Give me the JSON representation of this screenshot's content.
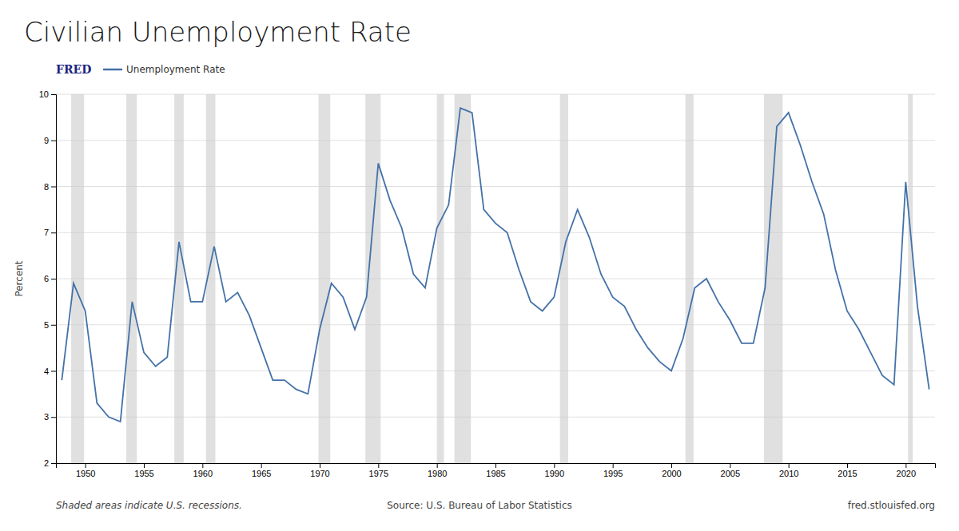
{
  "chart_data": {
    "type": "line",
    "title": "Civilian Unemployment Rate",
    "ylabel": "Percent",
    "annotations": [
      "FRED",
      "Shaded areas indicate U.S. recessions.",
      "Source: U.S. Bureau of Labor Statistics",
      "fred.stlouisfed.org"
    ],
    "x": [
      1948,
      1949,
      1950,
      1951,
      1952,
      1953,
      1954,
      1955,
      1956,
      1957,
      1958,
      1959,
      1960,
      1961,
      1962,
      1963,
      1964,
      1965,
      1966,
      1967,
      1968,
      1969,
      1970,
      1971,
      1972,
      1973,
      1974,
      1975,
      1976,
      1977,
      1978,
      1979,
      1980,
      1981,
      1982,
      1983,
      1984,
      1985,
      1986,
      1987,
      1988,
      1989,
      1990,
      1991,
      1992,
      1993,
      1994,
      1995,
      1996,
      1997,
      1998,
      1999,
      2000,
      2001,
      2002,
      2003,
      2004,
      2005,
      2006,
      2007,
      2008,
      2009,
      2010,
      2011,
      2012,
      2013,
      2014,
      2015,
      2016,
      2017,
      2018,
      2019,
      2020,
      2021,
      2022
    ],
    "series": [
      {
        "name": "Unemployment Rate",
        "color": "#4472a8",
        "values": [
          3.8,
          5.9,
          5.3,
          3.3,
          3.0,
          2.9,
          5.5,
          4.4,
          4.1,
          4.3,
          6.8,
          5.5,
          5.5,
          6.7,
          5.5,
          5.7,
          5.2,
          4.5,
          3.8,
          3.8,
          3.6,
          3.5,
          4.9,
          5.9,
          5.6,
          4.9,
          5.6,
          8.5,
          7.7,
          7.1,
          6.1,
          5.8,
          7.1,
          7.6,
          9.7,
          9.6,
          7.5,
          7.2,
          7.0,
          6.2,
          5.5,
          5.3,
          5.6,
          6.8,
          7.5,
          6.9,
          6.1,
          5.6,
          5.4,
          4.9,
          4.5,
          4.2,
          4.0,
          4.7,
          5.8,
          6.0,
          5.5,
          5.1,
          4.6,
          4.6,
          5.8,
          9.3,
          9.6,
          8.9,
          8.1,
          7.4,
          6.2,
          5.3,
          4.9,
          4.4,
          3.9,
          3.7,
          8.1,
          5.4,
          3.6
        ]
      }
    ],
    "recessions": [
      [
        1948.8,
        1949.9
      ],
      [
        1953.5,
        1954.4
      ],
      [
        1957.6,
        1958.4
      ],
      [
        1960.3,
        1961.1
      ],
      [
        1969.9,
        1970.9
      ],
      [
        1973.9,
        1975.2
      ],
      [
        1980.0,
        1980.6
      ],
      [
        1981.5,
        1982.9
      ],
      [
        1990.5,
        1991.2
      ],
      [
        2001.2,
        2001.9
      ],
      [
        2007.9,
        2009.5
      ],
      [
        2020.2,
        2020.6
      ]
    ],
    "xlim": [
      1947.5,
      2022.5
    ],
    "xticks": [
      1950,
      1955,
      1960,
      1965,
      1970,
      1975,
      1980,
      1985,
      1990,
      1995,
      2000,
      2005,
      2010,
      2015,
      2020
    ],
    "ylim": [
      2,
      10
    ],
    "yticks": [
      2,
      3,
      4,
      5,
      6,
      7,
      8,
      9,
      10
    ],
    "grid": true,
    "legend": "top-left"
  }
}
